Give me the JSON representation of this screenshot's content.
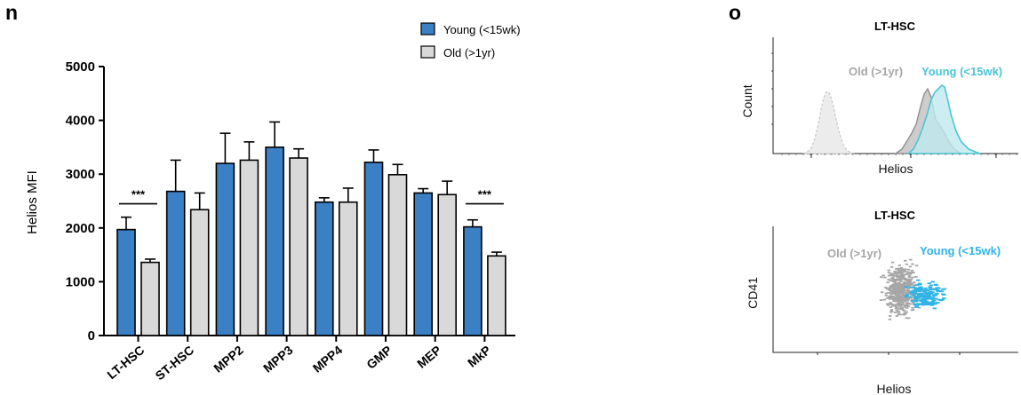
{
  "panels": {
    "n": "n",
    "o": "o"
  },
  "colors": {
    "young": "#3b7fc4",
    "old": "#d9d9d9",
    "young_facs": "#4cc5d6",
    "young_dot": "#32b3e6",
    "old_facs": "#a6a6a6"
  },
  "chart_data": [
    {
      "type": "bar",
      "categories": [
        "LT-HSC",
        "ST-HSC",
        "MPP2",
        "MPP3",
        "MPP4",
        "GMP",
        "MEP",
        "MkP"
      ],
      "ylabel": "Helios MFI",
      "xlabel": "",
      "ylim": [
        0,
        5000
      ],
      "yticks": [
        "0",
        "1000",
        "2000",
        "3000",
        "4000",
        "5000"
      ],
      "legend_position": "top-right",
      "series": [
        {
          "name": "Young (<15wk)",
          "values": [
            1970,
            2680,
            3200,
            3500,
            2480,
            3220,
            2650,
            2020
          ],
          "errors": [
            230,
            580,
            560,
            470,
            80,
            230,
            80,
            130
          ]
        },
        {
          "name": "Old (>1yr)",
          "values": [
            1360,
            2340,
            3260,
            3300,
            2480,
            2990,
            2620,
            1480
          ],
          "errors": [
            60,
            310,
            340,
            170,
            260,
            190,
            250,
            70
          ]
        }
      ],
      "annotations": [
        {
          "category": "LT-HSC",
          "text": "***"
        },
        {
          "category": "MkP",
          "text": "***"
        }
      ]
    },
    {
      "type": "area",
      "title": "LT-HSC",
      "xlabel": "Helios",
      "ylabel": "Count",
      "series_labels": [
        "Old (>1yr)",
        "Young (<15wk)"
      ]
    },
    {
      "type": "scatter",
      "title": "LT-HSC",
      "xlabel": "Helios",
      "ylabel": "CD41",
      "series_labels": [
        "Old (>1yr)",
        "Young (<15wk)"
      ]
    }
  ]
}
